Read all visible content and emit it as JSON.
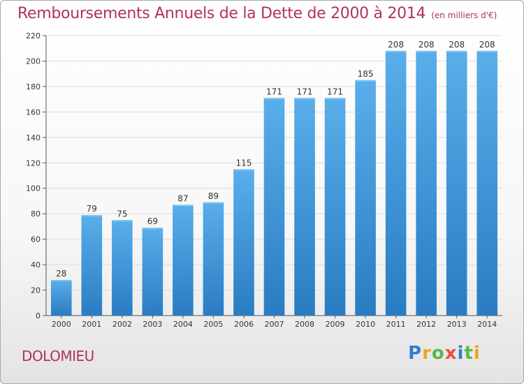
{
  "title": "Remboursements Annuels de la Dette de 2000 à 2014",
  "unit": "(en milliers d'€)",
  "city": "DOLOMIEU",
  "logo": {
    "letters": [
      "P",
      "r",
      "o",
      "x",
      "i",
      "t",
      "i"
    ],
    "colors": [
      "#2e7fd0",
      "#f2a31b",
      "#5bb947",
      "#e94e3c",
      "#2e7fd0",
      "#5bb947",
      "#f2a31b"
    ]
  },
  "colors": {
    "accent": "#b0325f",
    "bar": "#3a8fd6",
    "bar_light": "#5aaeea",
    "grid": "#dddddd"
  },
  "chart_data": {
    "type": "bar",
    "title": "Remboursements Annuels de la Dette de 2000 à 2014",
    "xlabel": "",
    "ylabel": "",
    "ylim": [
      0,
      220
    ],
    "yticks": [
      0,
      20,
      40,
      60,
      80,
      100,
      120,
      140,
      160,
      180,
      200,
      220
    ],
    "categories": [
      "2000",
      "2001",
      "2002",
      "2003",
      "2004",
      "2005",
      "2006",
      "2007",
      "2008",
      "2009",
      "2010",
      "2011",
      "2012",
      "2013",
      "2014"
    ],
    "values": [
      28,
      79,
      75,
      69,
      87,
      89,
      115,
      171,
      171,
      171,
      185,
      208,
      208,
      208,
      208
    ],
    "grid": true
  }
}
